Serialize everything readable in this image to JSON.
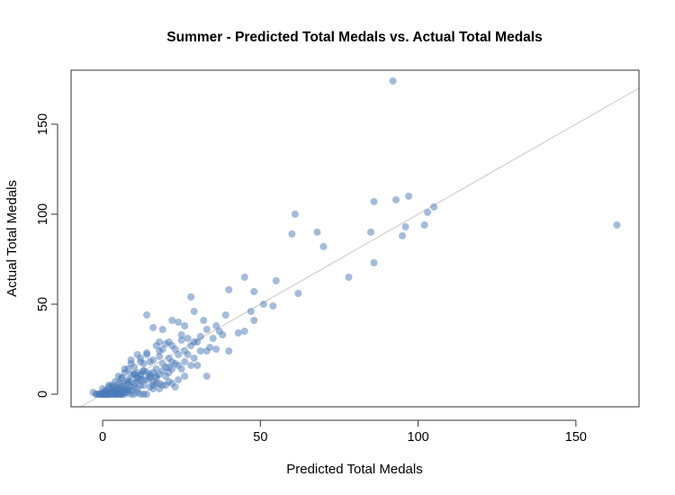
{
  "chart_data": {
    "type": "scatter",
    "title": "Summer - Predicted Total Medals vs. Actual Total Medals",
    "xlabel": "Predicted Total Medals",
    "ylabel": "Actual Total Medals",
    "xlim": [
      -10,
      170
    ],
    "ylim": [
      -7,
      180
    ],
    "x_ticks": [
      0,
      50,
      100,
      150
    ],
    "y_ticks": [
      0,
      50,
      100,
      150
    ],
    "grid": false,
    "legend": "none",
    "point_color": "#4a7ab8",
    "reference_line": {
      "slope": 1,
      "intercept": 0,
      "color": "#c8c8c8"
    },
    "series": [
      {
        "x": [
          92,
          163,
          105,
          97,
          103,
          102,
          95,
          86,
          85,
          96,
          93,
          60,
          68,
          61,
          70,
          78,
          86,
          45,
          55,
          48,
          40,
          62,
          28,
          51,
          54,
          47,
          39,
          14,
          29,
          22,
          36,
          24,
          48,
          32,
          16,
          19,
          26,
          33,
          37,
          45,
          38,
          31,
          25,
          27,
          43,
          21,
          29,
          35,
          40,
          33,
          22,
          18,
          30,
          25,
          20,
          28,
          31,
          23,
          17,
          26,
          34,
          36,
          27,
          19,
          24,
          29,
          14,
          18,
          21,
          11,
          15,
          9,
          13,
          26,
          23,
          28,
          30,
          22,
          19,
          16,
          20,
          24,
          12,
          17,
          21,
          25,
          10,
          13,
          16,
          19,
          22,
          15,
          11,
          18,
          8,
          12,
          14,
          17,
          20,
          9,
          7,
          6,
          10,
          13,
          15,
          11,
          8,
          5,
          9,
          12,
          16,
          18,
          14,
          10,
          6,
          4,
          8,
          11,
          13,
          7,
          5,
          9,
          3,
          6,
          10,
          12,
          4,
          8,
          2,
          5,
          7,
          9,
          11,
          3,
          6,
          1,
          4,
          8,
          2,
          5,
          7,
          0,
          3,
          6,
          1,
          4,
          2,
          0,
          -1,
          1,
          3,
          5,
          2,
          0,
          -2,
          1,
          3,
          0,
          -1,
          2,
          4,
          1,
          0,
          -2,
          -3,
          -1,
          1,
          0,
          2,
          3,
          5,
          7,
          4,
          6,
          8,
          10,
          12,
          5,
          3,
          9,
          14,
          11,
          7,
          16,
          6,
          20,
          4,
          17,
          2,
          15,
          18,
          21,
          13,
          24,
          19,
          22,
          26,
          23,
          33,
          16,
          14,
          12,
          18,
          21,
          9,
          7,
          11,
          13,
          8,
          10,
          15,
          12,
          17,
          5,
          3,
          1,
          0,
          2,
          4,
          6
        ],
        "y": [
          174,
          94,
          104,
          110,
          101,
          94,
          88,
          107,
          90,
          93,
          108,
          89,
          90,
          100,
          82,
          65,
          73,
          65,
          63,
          57,
          58,
          56,
          54,
          50,
          49,
          46,
          44,
          44,
          46,
          41,
          38,
          40,
          41,
          41,
          37,
          36,
          38,
          36,
          35,
          35,
          33,
          32,
          33,
          31,
          34,
          29,
          29,
          31,
          24,
          24,
          27,
          29,
          29,
          30,
          28,
          27,
          24,
          25,
          27,
          24,
          26,
          25,
          22,
          25,
          22,
          20,
          23,
          21,
          20,
          22,
          18,
          19,
          17,
          18,
          17,
          16,
          16,
          18,
          17,
          19,
          15,
          16,
          18,
          14,
          15,
          14,
          15,
          13,
          12,
          13,
          14,
          11,
          12,
          11,
          14,
          10,
          12,
          9,
          10,
          11,
          12,
          9,
          11,
          8,
          10,
          9,
          8,
          10,
          7,
          8,
          7,
          6,
          8,
          6,
          9,
          7,
          6,
          7,
          5,
          5,
          6,
          4,
          5,
          4,
          4,
          5,
          3,
          3,
          4,
          3,
          3,
          2,
          3,
          2,
          2,
          2,
          1,
          2,
          1,
          1,
          1,
          1,
          1,
          0,
          0,
          0,
          0,
          0,
          0,
          0,
          0,
          0,
          0,
          0,
          0,
          0,
          0,
          0,
          0,
          0,
          1,
          0,
          0,
          0,
          1,
          0,
          1,
          0,
          0,
          1,
          0,
          0,
          0,
          0,
          1,
          0,
          0,
          2,
          1,
          0,
          0,
          1,
          2,
          3,
          0,
          5,
          0,
          6,
          0,
          4,
          3,
          7,
          0,
          8,
          5,
          6,
          10,
          4,
          10,
          5,
          22,
          20,
          24,
          12,
          17,
          14,
          9,
          13,
          7,
          11,
          9,
          11,
          10,
          3,
          4,
          2,
          3,
          5,
          4,
          6
        ]
      }
    ]
  }
}
